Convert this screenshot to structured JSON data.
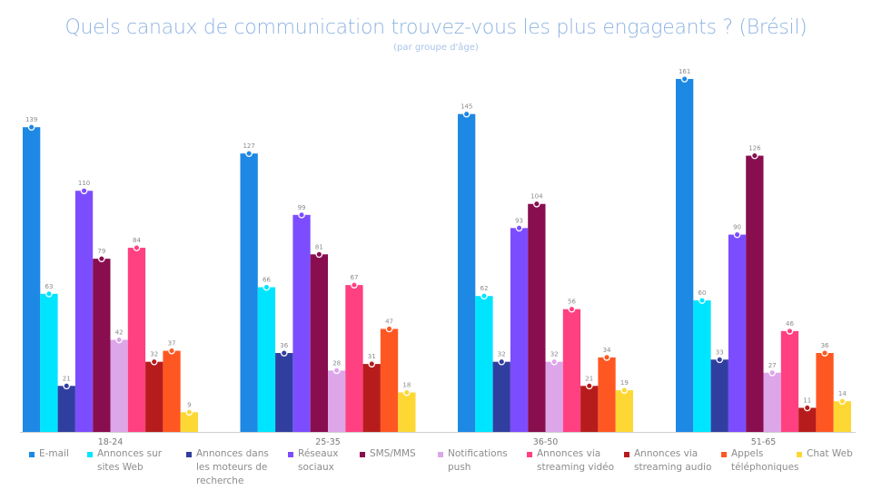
{
  "chart_data": {
    "type": "bar",
    "title": "Quels canaux de communication trouvez-vous les plus engageants ? (Brésil)",
    "subtitle": "(par groupe d'âge)",
    "xlabel": "",
    "ylabel": "",
    "ylim": [
      0,
      170
    ],
    "grid": false,
    "legend_position": "bottom",
    "categories": [
      "18-24",
      "25-35",
      "36-50",
      "51-65"
    ],
    "series": [
      {
        "name": "E-mail",
        "color": "#1e88e5",
        "values": [
          139,
          127,
          145,
          161
        ]
      },
      {
        "name": "Annonces sur sites Web",
        "color": "#00e5ff",
        "values": [
          63,
          66,
          62,
          60
        ]
      },
      {
        "name": "Annonces dans les moteurs de recherche",
        "color": "#303f9f",
        "values": [
          21,
          36,
          32,
          33
        ]
      },
      {
        "name": "Réseaux sociaux",
        "color": "#7c4dff",
        "values": [
          110,
          99,
          93,
          90
        ]
      },
      {
        "name": "SMS/MMS",
        "color": "#880e4f",
        "values": [
          79,
          81,
          104,
          126
        ]
      },
      {
        "name": "Notifications push",
        "color": "#dda6e8",
        "values": [
          42,
          28,
          32,
          27
        ]
      },
      {
        "name": "Annonces via streaming vidéo",
        "color": "#ff4081",
        "values": [
          84,
          67,
          56,
          46
        ]
      },
      {
        "name": "Annonces via streaming audio",
        "color": "#b71c1c",
        "values": [
          32,
          31,
          21,
          11
        ]
      },
      {
        "name": "Appels téléphoniques",
        "color": "#ff5722",
        "values": [
          37,
          47,
          34,
          36
        ]
      },
      {
        "name": "Chat Web",
        "color": "#fdd835",
        "values": [
          9,
          18,
          19,
          14
        ]
      }
    ]
  }
}
